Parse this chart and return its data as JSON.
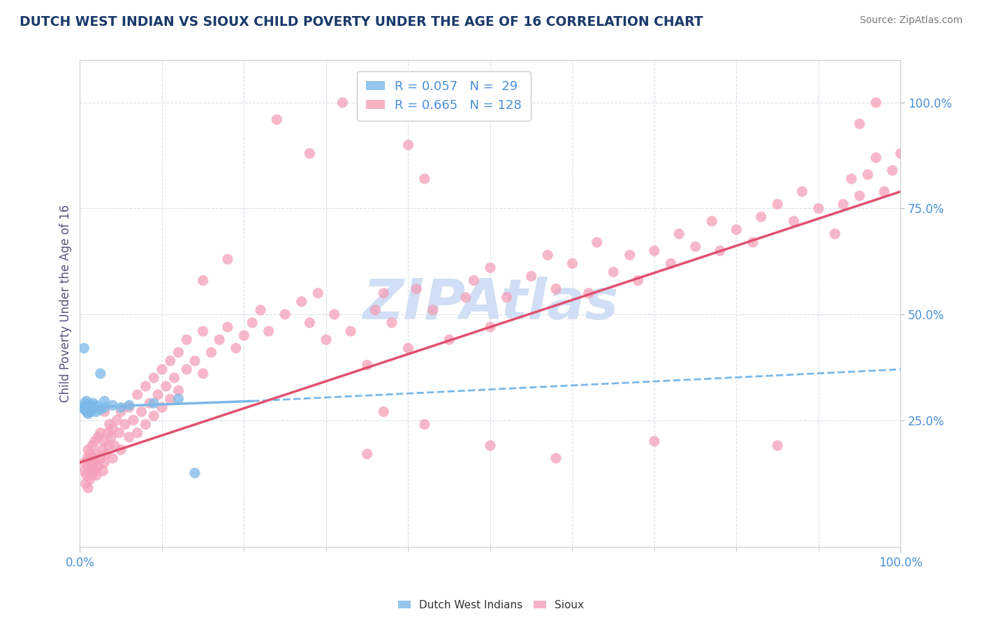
{
  "title": "DUTCH WEST INDIAN VS SIOUX CHILD POVERTY UNDER THE AGE OF 16 CORRELATION CHART",
  "source": "Source: ZipAtlas.com",
  "ylabel": "Child Poverty Under the Age of 16",
  "xlim": [
    0.0,
    1.0
  ],
  "ylim": [
    -0.05,
    1.1
  ],
  "xtick_labels": [
    "0.0%",
    "100.0%"
  ],
  "ytick_labels": [
    "25.0%",
    "50.0%",
    "75.0%",
    "100.0%"
  ],
  "ytick_positions": [
    0.25,
    0.5,
    0.75,
    1.0
  ],
  "blue_color": "#7bb8e8",
  "pink_color": "#f4a0b8",
  "title_color": "#1a3a6b",
  "axis_label_color": "#555580",
  "tick_color": "#4a90d9",
  "watermark_color": "#d0dff5",
  "background_color": "#ffffff",
  "grid_color": "#d8dfe8",
  "blue_scatter": [
    [
      0.003,
      0.28
    ],
    [
      0.006,
      0.275
    ],
    [
      0.006,
      0.29
    ],
    [
      0.008,
      0.27
    ],
    [
      0.008,
      0.28
    ],
    [
      0.008,
      0.295
    ],
    [
      0.01,
      0.265
    ],
    [
      0.01,
      0.275
    ],
    [
      0.01,
      0.285
    ],
    [
      0.012,
      0.27
    ],
    [
      0.012,
      0.28
    ],
    [
      0.014,
      0.27
    ],
    [
      0.014,
      0.285
    ],
    [
      0.016,
      0.275
    ],
    [
      0.016,
      0.29
    ],
    [
      0.018,
      0.28
    ],
    [
      0.02,
      0.27
    ],
    [
      0.02,
      0.285
    ],
    [
      0.025,
      0.275
    ],
    [
      0.03,
      0.28
    ],
    [
      0.03,
      0.295
    ],
    [
      0.04,
      0.285
    ],
    [
      0.05,
      0.28
    ],
    [
      0.06,
      0.285
    ],
    [
      0.09,
      0.29
    ],
    [
      0.12,
      0.3
    ],
    [
      0.005,
      0.42
    ],
    [
      0.025,
      0.36
    ],
    [
      0.14,
      0.125
    ]
  ],
  "pink_scatter": [
    [
      0.005,
      0.13
    ],
    [
      0.006,
      0.15
    ],
    [
      0.007,
      0.1
    ],
    [
      0.008,
      0.12
    ],
    [
      0.009,
      0.16
    ],
    [
      0.01,
      0.09
    ],
    [
      0.01,
      0.14
    ],
    [
      0.01,
      0.18
    ],
    [
      0.012,
      0.11
    ],
    [
      0.012,
      0.17
    ],
    [
      0.013,
      0.13
    ],
    [
      0.014,
      0.15
    ],
    [
      0.015,
      0.12
    ],
    [
      0.015,
      0.19
    ],
    [
      0.016,
      0.14
    ],
    [
      0.017,
      0.16
    ],
    [
      0.018,
      0.13
    ],
    [
      0.018,
      0.2
    ],
    [
      0.019,
      0.15
    ],
    [
      0.02,
      0.12
    ],
    [
      0.02,
      0.17
    ],
    [
      0.022,
      0.14
    ],
    [
      0.022,
      0.21
    ],
    [
      0.025,
      0.16
    ],
    [
      0.025,
      0.22
    ],
    [
      0.027,
      0.18
    ],
    [
      0.028,
      0.13
    ],
    [
      0.03,
      0.15
    ],
    [
      0.03,
      0.2
    ],
    [
      0.03,
      0.27
    ],
    [
      0.032,
      0.17
    ],
    [
      0.034,
      0.22
    ],
    [
      0.035,
      0.19
    ],
    [
      0.036,
      0.24
    ],
    [
      0.038,
      0.21
    ],
    [
      0.04,
      0.16
    ],
    [
      0.04,
      0.23
    ],
    [
      0.042,
      0.19
    ],
    [
      0.045,
      0.25
    ],
    [
      0.048,
      0.22
    ],
    [
      0.05,
      0.18
    ],
    [
      0.05,
      0.27
    ],
    [
      0.055,
      0.24
    ],
    [
      0.06,
      0.21
    ],
    [
      0.06,
      0.28
    ],
    [
      0.065,
      0.25
    ],
    [
      0.07,
      0.22
    ],
    [
      0.07,
      0.31
    ],
    [
      0.075,
      0.27
    ],
    [
      0.08,
      0.24
    ],
    [
      0.08,
      0.33
    ],
    [
      0.085,
      0.29
    ],
    [
      0.09,
      0.26
    ],
    [
      0.09,
      0.35
    ],
    [
      0.095,
      0.31
    ],
    [
      0.1,
      0.28
    ],
    [
      0.1,
      0.37
    ],
    [
      0.105,
      0.33
    ],
    [
      0.11,
      0.3
    ],
    [
      0.11,
      0.39
    ],
    [
      0.115,
      0.35
    ],
    [
      0.12,
      0.32
    ],
    [
      0.12,
      0.41
    ],
    [
      0.13,
      0.37
    ],
    [
      0.13,
      0.44
    ],
    [
      0.14,
      0.39
    ],
    [
      0.15,
      0.36
    ],
    [
      0.15,
      0.46
    ],
    [
      0.16,
      0.41
    ],
    [
      0.17,
      0.44
    ],
    [
      0.18,
      0.47
    ],
    [
      0.19,
      0.42
    ],
    [
      0.2,
      0.45
    ],
    [
      0.21,
      0.48
    ],
    [
      0.22,
      0.51
    ],
    [
      0.23,
      0.46
    ],
    [
      0.25,
      0.5
    ],
    [
      0.27,
      0.53
    ],
    [
      0.28,
      0.48
    ],
    [
      0.29,
      0.55
    ],
    [
      0.3,
      0.44
    ],
    [
      0.31,
      0.5
    ],
    [
      0.33,
      0.46
    ],
    [
      0.35,
      0.38
    ],
    [
      0.36,
      0.51
    ],
    [
      0.37,
      0.55
    ],
    [
      0.38,
      0.48
    ],
    [
      0.4,
      0.42
    ],
    [
      0.41,
      0.56
    ],
    [
      0.43,
      0.51
    ],
    [
      0.45,
      0.44
    ],
    [
      0.47,
      0.54
    ],
    [
      0.48,
      0.58
    ],
    [
      0.5,
      0.47
    ],
    [
      0.5,
      0.61
    ],
    [
      0.52,
      0.54
    ],
    [
      0.55,
      0.59
    ],
    [
      0.57,
      0.64
    ],
    [
      0.58,
      0.56
    ],
    [
      0.6,
      0.62
    ],
    [
      0.62,
      0.55
    ],
    [
      0.63,
      0.67
    ],
    [
      0.65,
      0.6
    ],
    [
      0.67,
      0.64
    ],
    [
      0.68,
      0.58
    ],
    [
      0.7,
      0.65
    ],
    [
      0.72,
      0.62
    ],
    [
      0.73,
      0.69
    ],
    [
      0.75,
      0.66
    ],
    [
      0.77,
      0.72
    ],
    [
      0.78,
      0.65
    ],
    [
      0.8,
      0.7
    ],
    [
      0.82,
      0.67
    ],
    [
      0.83,
      0.73
    ],
    [
      0.85,
      0.76
    ],
    [
      0.87,
      0.72
    ],
    [
      0.88,
      0.79
    ],
    [
      0.9,
      0.75
    ],
    [
      0.92,
      0.69
    ],
    [
      0.93,
      0.76
    ],
    [
      0.94,
      0.82
    ],
    [
      0.95,
      0.78
    ],
    [
      0.96,
      0.83
    ],
    [
      0.97,
      0.87
    ],
    [
      0.98,
      0.79
    ],
    [
      0.99,
      0.84
    ],
    [
      1.0,
      0.88
    ],
    [
      0.24,
      0.96
    ],
    [
      0.28,
      0.88
    ],
    [
      0.32,
      1.0
    ],
    [
      0.4,
      0.9
    ],
    [
      0.42,
      0.82
    ],
    [
      0.95,
      0.95
    ],
    [
      0.97,
      1.0
    ],
    [
      0.15,
      0.58
    ],
    [
      0.18,
      0.63
    ],
    [
      0.35,
      0.17
    ],
    [
      0.5,
      0.19
    ],
    [
      0.58,
      0.16
    ],
    [
      0.7,
      0.2
    ],
    [
      0.85,
      0.19
    ],
    [
      0.37,
      0.27
    ],
    [
      0.42,
      0.24
    ]
  ],
  "blue_trendline_solid": [
    [
      0.0,
      0.28
    ],
    [
      0.21,
      0.295
    ]
  ],
  "blue_trendline_dashed": [
    [
      0.21,
      0.295
    ],
    [
      1.0,
      0.37
    ]
  ],
  "pink_trendline": [
    [
      0.0,
      0.15
    ],
    [
      1.0,
      0.79
    ]
  ]
}
